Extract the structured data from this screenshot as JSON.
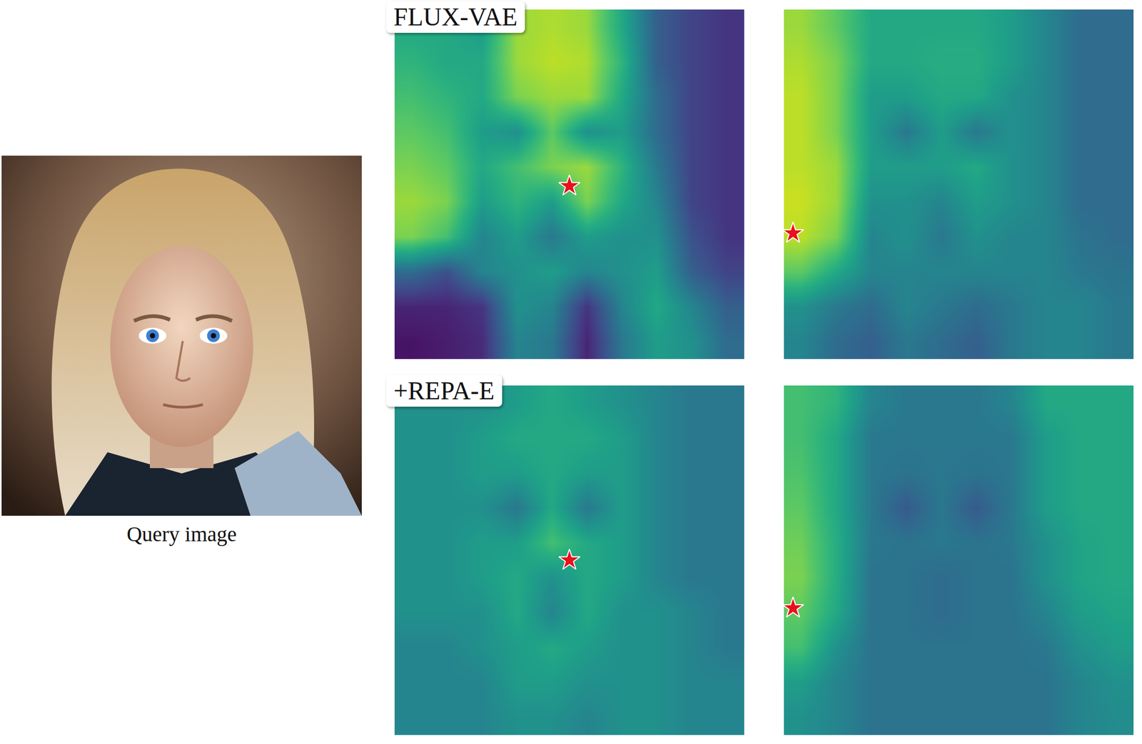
{
  "query_image": {
    "caption": "Query image"
  },
  "rows": [
    {
      "label": "FLUX-VAE"
    },
    {
      "label": "+REPA-E"
    }
  ],
  "chart_data": [
    {
      "type": "heatmap",
      "color": "Viridis",
      "zlim": [
        0,
        1
      ],
      "xlim": [
        0,
        1
      ],
      "ylim": [
        1,
        0
      ],
      "tick_labels": false,
      "query_point": {
        "x": 0.5,
        "y": 0.505
      },
      "cells": [
        [
          0.6,
          0.6,
          0.55,
          0.85,
          0.88,
          0.85,
          0.6,
          0.3,
          0.2,
          0.15
        ],
        [
          0.65,
          0.6,
          0.6,
          0.85,
          0.9,
          0.88,
          0.65,
          0.3,
          0.2,
          0.15
        ],
        [
          0.7,
          0.65,
          0.6,
          0.8,
          0.85,
          0.85,
          0.6,
          0.35,
          0.2,
          0.15
        ],
        [
          0.75,
          0.7,
          0.55,
          0.5,
          0.75,
          0.5,
          0.55,
          0.35,
          0.2,
          0.15
        ],
        [
          0.8,
          0.75,
          0.6,
          0.7,
          0.8,
          0.85,
          0.65,
          0.4,
          0.2,
          0.15
        ],
        [
          0.85,
          0.8,
          0.55,
          0.65,
          0.55,
          0.8,
          0.6,
          0.45,
          0.2,
          0.15
        ],
        [
          0.8,
          0.7,
          0.45,
          0.55,
          0.4,
          0.55,
          0.5,
          0.5,
          0.25,
          0.15
        ],
        [
          0.35,
          0.25,
          0.45,
          0.5,
          0.55,
          0.45,
          0.5,
          0.55,
          0.3,
          0.2
        ],
        [
          0.1,
          0.1,
          0.15,
          0.5,
          0.45,
          0.15,
          0.45,
          0.6,
          0.45,
          0.3
        ],
        [
          0.05,
          0.08,
          0.12,
          0.45,
          0.4,
          0.1,
          0.4,
          0.55,
          0.5,
          0.35
        ]
      ]
    },
    {
      "type": "heatmap",
      "color": "Viridis",
      "zlim": [
        0,
        1
      ],
      "xlim": [
        0,
        1
      ],
      "ylim": [
        1,
        0
      ],
      "tick_labels": false,
      "query_point": {
        "x": 0.026,
        "y": 0.64
      },
      "cells": [
        [
          0.85,
          0.75,
          0.6,
          0.6,
          0.6,
          0.6,
          0.55,
          0.45,
          0.35,
          0.35
        ],
        [
          0.88,
          0.8,
          0.6,
          0.6,
          0.62,
          0.62,
          0.55,
          0.45,
          0.35,
          0.35
        ],
        [
          0.9,
          0.8,
          0.55,
          0.55,
          0.6,
          0.6,
          0.5,
          0.45,
          0.35,
          0.35
        ],
        [
          0.9,
          0.8,
          0.55,
          0.4,
          0.55,
          0.4,
          0.5,
          0.45,
          0.35,
          0.35
        ],
        [
          0.9,
          0.85,
          0.55,
          0.55,
          0.55,
          0.6,
          0.5,
          0.45,
          0.35,
          0.35
        ],
        [
          0.92,
          0.85,
          0.5,
          0.5,
          0.45,
          0.55,
          0.5,
          0.45,
          0.35,
          0.35
        ],
        [
          0.9,
          0.8,
          0.45,
          0.5,
          0.4,
          0.5,
          0.45,
          0.45,
          0.38,
          0.35
        ],
        [
          0.75,
          0.6,
          0.45,
          0.45,
          0.45,
          0.45,
          0.45,
          0.45,
          0.4,
          0.38
        ],
        [
          0.5,
          0.4,
          0.35,
          0.45,
          0.4,
          0.35,
          0.4,
          0.45,
          0.45,
          0.4
        ],
        [
          0.45,
          0.35,
          0.3,
          0.4,
          0.35,
          0.3,
          0.4,
          0.45,
          0.45,
          0.4
        ]
      ]
    },
    {
      "type": "heatmap",
      "color": "Viridis",
      "zlim": [
        0,
        1
      ],
      "xlim": [
        0,
        1
      ],
      "ylim": [
        1,
        0
      ],
      "tick_labels": false,
      "query_point": {
        "x": 0.5,
        "y": 0.5
      },
      "cells": [
        [
          0.5,
          0.5,
          0.5,
          0.55,
          0.6,
          0.55,
          0.5,
          0.45,
          0.4,
          0.4
        ],
        [
          0.5,
          0.5,
          0.55,
          0.6,
          0.6,
          0.6,
          0.55,
          0.45,
          0.4,
          0.4
        ],
        [
          0.5,
          0.5,
          0.55,
          0.55,
          0.6,
          0.55,
          0.55,
          0.45,
          0.4,
          0.4
        ],
        [
          0.5,
          0.5,
          0.5,
          0.4,
          0.6,
          0.4,
          0.55,
          0.45,
          0.4,
          0.4
        ],
        [
          0.5,
          0.5,
          0.55,
          0.55,
          0.7,
          0.6,
          0.55,
          0.45,
          0.4,
          0.4
        ],
        [
          0.5,
          0.5,
          0.55,
          0.6,
          0.5,
          0.6,
          0.55,
          0.45,
          0.4,
          0.4
        ],
        [
          0.5,
          0.5,
          0.5,
          0.6,
          0.45,
          0.6,
          0.5,
          0.5,
          0.45,
          0.4
        ],
        [
          0.45,
          0.45,
          0.5,
          0.55,
          0.6,
          0.55,
          0.5,
          0.5,
          0.45,
          0.4
        ],
        [
          0.45,
          0.45,
          0.45,
          0.55,
          0.55,
          0.5,
          0.5,
          0.5,
          0.45,
          0.45
        ],
        [
          0.45,
          0.45,
          0.45,
          0.5,
          0.5,
          0.45,
          0.5,
          0.5,
          0.45,
          0.45
        ]
      ]
    },
    {
      "type": "heatmap",
      "color": "Viridis",
      "zlim": [
        0,
        1
      ],
      "xlim": [
        0,
        1
      ],
      "ylim": [
        1,
        0
      ],
      "tick_labels": false,
      "query_point": {
        "x": 0.026,
        "y": 0.637
      },
      "cells": [
        [
          0.7,
          0.65,
          0.45,
          0.4,
          0.4,
          0.4,
          0.45,
          0.6,
          0.6,
          0.6
        ],
        [
          0.7,
          0.6,
          0.4,
          0.4,
          0.4,
          0.4,
          0.4,
          0.55,
          0.6,
          0.6
        ],
        [
          0.72,
          0.6,
          0.4,
          0.38,
          0.4,
          0.38,
          0.4,
          0.55,
          0.6,
          0.6
        ],
        [
          0.75,
          0.6,
          0.4,
          0.28,
          0.4,
          0.28,
          0.4,
          0.55,
          0.6,
          0.6
        ],
        [
          0.78,
          0.62,
          0.4,
          0.38,
          0.4,
          0.38,
          0.4,
          0.5,
          0.58,
          0.6
        ],
        [
          0.8,
          0.62,
          0.38,
          0.38,
          0.35,
          0.38,
          0.38,
          0.5,
          0.58,
          0.6
        ],
        [
          0.75,
          0.6,
          0.38,
          0.38,
          0.35,
          0.38,
          0.38,
          0.45,
          0.55,
          0.58
        ],
        [
          0.7,
          0.5,
          0.38,
          0.38,
          0.38,
          0.38,
          0.38,
          0.4,
          0.5,
          0.55
        ],
        [
          0.55,
          0.45,
          0.38,
          0.38,
          0.38,
          0.38,
          0.38,
          0.38,
          0.45,
          0.5
        ],
        [
          0.5,
          0.45,
          0.38,
          0.38,
          0.38,
          0.38,
          0.38,
          0.38,
          0.45,
          0.48
        ]
      ]
    }
  ]
}
